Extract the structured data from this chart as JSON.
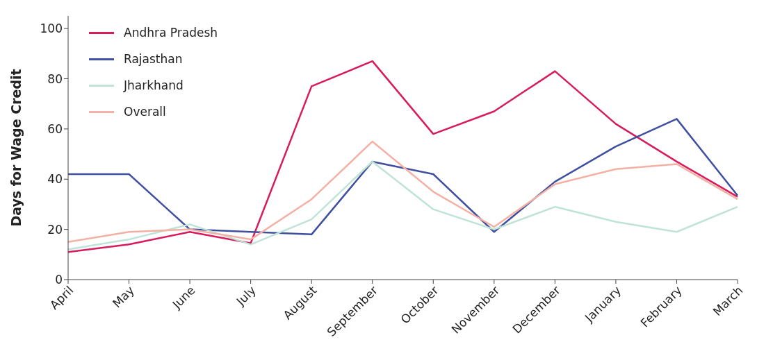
{
  "chart_data": {
    "type": "line",
    "ylabel": "Days for Wage Credit",
    "categories": [
      "April",
      "May",
      "June",
      "July",
      "August",
      "September",
      "October",
      "November",
      "December",
      "January",
      "February",
      "March"
    ],
    "series": [
      {
        "name": "Andhra Pradesh",
        "color": "#d81b5a",
        "values": [
          11,
          14,
          19,
          14.5,
          77,
          87,
          58,
          67,
          83,
          62,
          47,
          33
        ]
      },
      {
        "name": "Rajasthan",
        "color": "#3f4fa0",
        "values": [
          42,
          42,
          20,
          19,
          18,
          47,
          42,
          19,
          39,
          53,
          64,
          33.5
        ]
      },
      {
        "name": "Jharkhand",
        "color": "#bfe3d4",
        "values": [
          12,
          16,
          22,
          14,
          24,
          47,
          28,
          20,
          29,
          23,
          19,
          29
        ]
      },
      {
        "name": "Overall",
        "color": "#f4b0a4",
        "values": [
          15,
          19,
          20,
          16,
          32,
          55,
          35,
          21,
          38,
          44,
          46,
          32
        ]
      }
    ],
    "ylim": [
      0,
      105
    ],
    "yticks": [
      0,
      20,
      40,
      60,
      80,
      100
    ],
    "grid": false,
    "legend": "top left",
    "marker": "none",
    "line_style": "solid"
  }
}
